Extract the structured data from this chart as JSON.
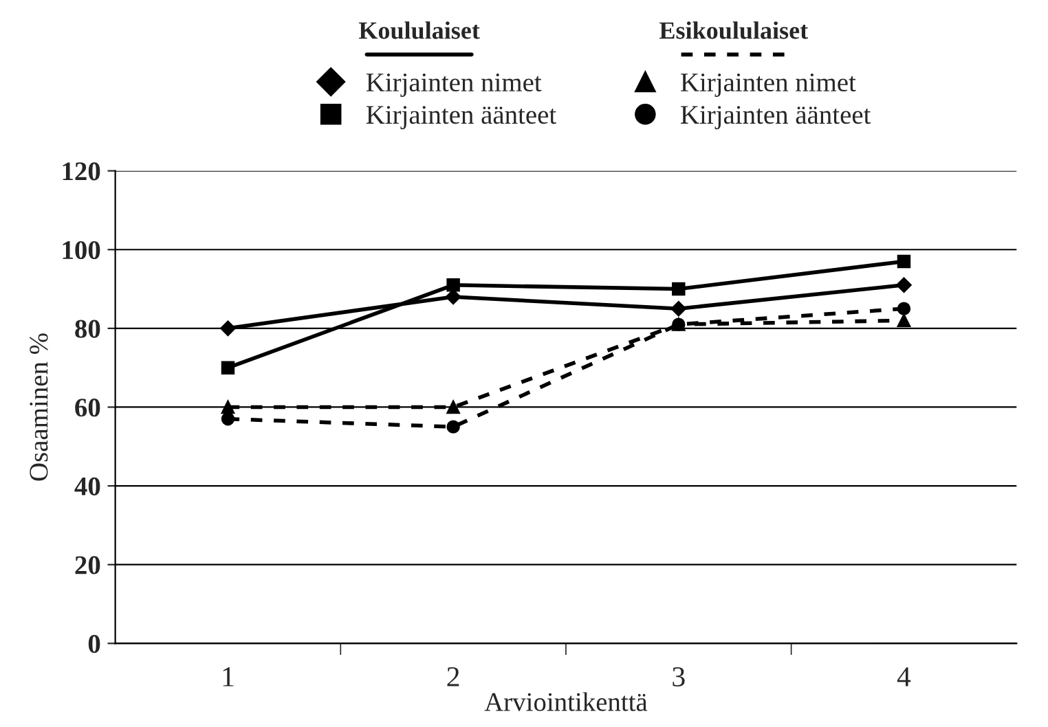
{
  "chart_data": {
    "type": "line",
    "xlabel": "Arviointikenttä",
    "ylabel": "Osaaminen %",
    "categories": [
      "1",
      "2",
      "3",
      "4"
    ],
    "ylim": [
      0,
      120
    ],
    "yticks": [
      0,
      20,
      40,
      60,
      80,
      100,
      120
    ],
    "grid": "y",
    "legend": "top",
    "annotations": [
      "Koululaiset",
      "Esikoululaiset"
    ],
    "series": [
      {
        "name": "Kirjainten nimet",
        "color": "#000000",
        "marker": "diamond",
        "line_style": "solid",
        "values": [
          80,
          88,
          85,
          91
        ]
      },
      {
        "name": "Kirjainten äänteet",
        "color": "#000000",
        "marker": "square",
        "line_style": "solid",
        "values": [
          70,
          91,
          90,
          97
        ]
      },
      {
        "name": "Kirjainten nimet",
        "color": "#000000",
        "marker": "triangle",
        "line_style": "dashed",
        "values": [
          60,
          60,
          81,
          82
        ]
      },
      {
        "name": "Kirjainten äänteet",
        "color": "#000000",
        "marker": "circle",
        "line_style": "dashed",
        "values": [
          57,
          55,
          81,
          85
        ]
      }
    ]
  }
}
